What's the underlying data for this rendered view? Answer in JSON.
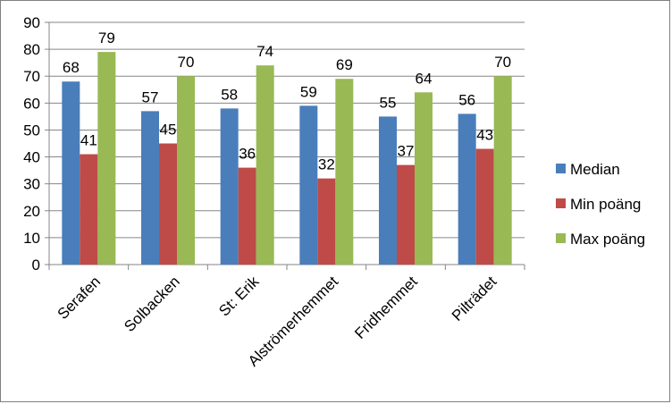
{
  "chart_data": {
    "type": "bar",
    "title": "",
    "xlabel": "",
    "ylabel": "",
    "categories": [
      "Serafen",
      "Solbacken",
      "St: Erik",
      "Alströmerhemmet",
      "Fridhemmet",
      "Pilträdet"
    ],
    "series": [
      {
        "name": "Median",
        "color": "#4a7ebb",
        "values": [
          68,
          57,
          58,
          59,
          55,
          56
        ]
      },
      {
        "name": "Min poäng",
        "color": "#be4b48",
        "values": [
          41,
          45,
          36,
          32,
          37,
          43
        ]
      },
      {
        "name": "Max poäng",
        "color": "#98b954",
        "values": [
          79,
          70,
          74,
          69,
          64,
          70
        ]
      }
    ],
    "ylim": [
      0,
      90
    ],
    "yticks": [
      "0",
      "10",
      "20",
      "30",
      "40",
      "50",
      "60",
      "70",
      "80",
      "90"
    ],
    "grid": true,
    "legend_position": "right",
    "data_labels": true
  }
}
